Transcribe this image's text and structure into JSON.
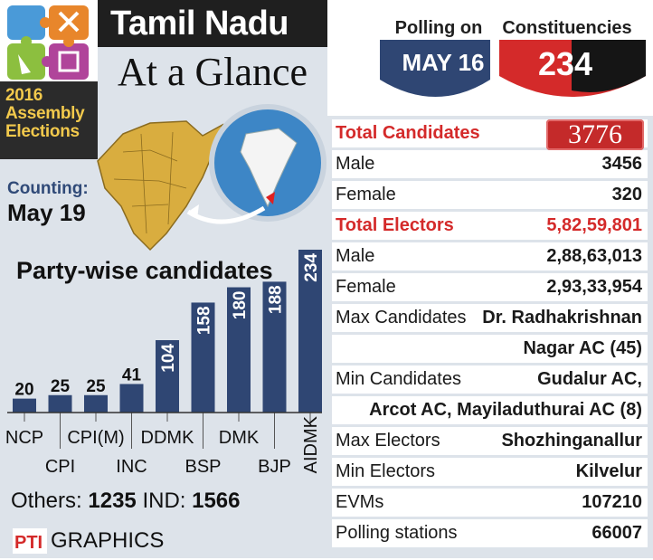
{
  "header": {
    "title": "Tamil Nadu",
    "subtitle": "At a Glance",
    "year_line1": "2016",
    "year_line2": "Assembly",
    "year_line3": "Elections",
    "counting_label": "Counting:",
    "counting_date": "May 19"
  },
  "polling": {
    "label": "Polling on",
    "date": "MAY 16",
    "constituencies_label": "Constituencies",
    "constituencies_value": "234"
  },
  "chart_data": {
    "type": "bar",
    "title": "Party-wise candidates",
    "categories": [
      "NCP",
      "CPI",
      "CPI(M)",
      "INC",
      "DDMK",
      "BSP",
      "DMK",
      "BJP",
      "AIDMK"
    ],
    "values": [
      20,
      25,
      25,
      41,
      104,
      158,
      180,
      188,
      234
    ],
    "data_labels": [
      "20",
      "25",
      "25",
      "41",
      "104",
      "158",
      "180",
      "188",
      "234"
    ],
    "bar_color": "#2f4673",
    "ylim": [
      0,
      234
    ],
    "grid": false
  },
  "others": {
    "others_label": "Others:",
    "others_value": "1235",
    "ind_label": "IND:",
    "ind_value": "1566"
  },
  "footer": {
    "logo_text": "PTI",
    "graphics_label": "GRAPHICS"
  },
  "stats": [
    {
      "label": "Total Candidates",
      "value": "3776",
      "style": "boxed"
    },
    {
      "label": "Male",
      "value": "3456",
      "style": "normal"
    },
    {
      "label": "Female",
      "value": "320",
      "style": "normal"
    },
    {
      "label": "Total Electors",
      "value": "5,82,59,801",
      "style": "red"
    },
    {
      "label": "Male",
      "value": "2,88,63,013",
      "style": "normal"
    },
    {
      "label": "Female",
      "value": "2,93,33,954",
      "style": "normal"
    },
    {
      "label": "Max Candidates",
      "value": "Dr. Radhakrishnan",
      "style": "normal"
    },
    {
      "label": "",
      "value": "Nagar AC (45)",
      "style": "normal"
    },
    {
      "label": "Min Candidates",
      "value": "Gudalur AC,",
      "style": "normal"
    },
    {
      "label": "",
      "value": "Arcot AC, Mayiladuthurai AC (8)",
      "style": "normal"
    },
    {
      "label": "Max Electors",
      "value": "Shozhinganallur",
      "style": "normal"
    },
    {
      "label": "Min Electors",
      "value": "Kilvelur",
      "style": "normal"
    },
    {
      "label": "EVMs",
      "value": "107210",
      "style": "normal"
    },
    {
      "label": "Polling stations",
      "value": "66007",
      "style": "normal"
    }
  ],
  "colors": {
    "accent_red": "#d42a2a",
    "navy": "#2f4673",
    "dark": "#1f1f1f",
    "panel_bg": "#dde3ea",
    "map_gold": "#d9ad3f",
    "globe_blue": "#3d86c6"
  }
}
